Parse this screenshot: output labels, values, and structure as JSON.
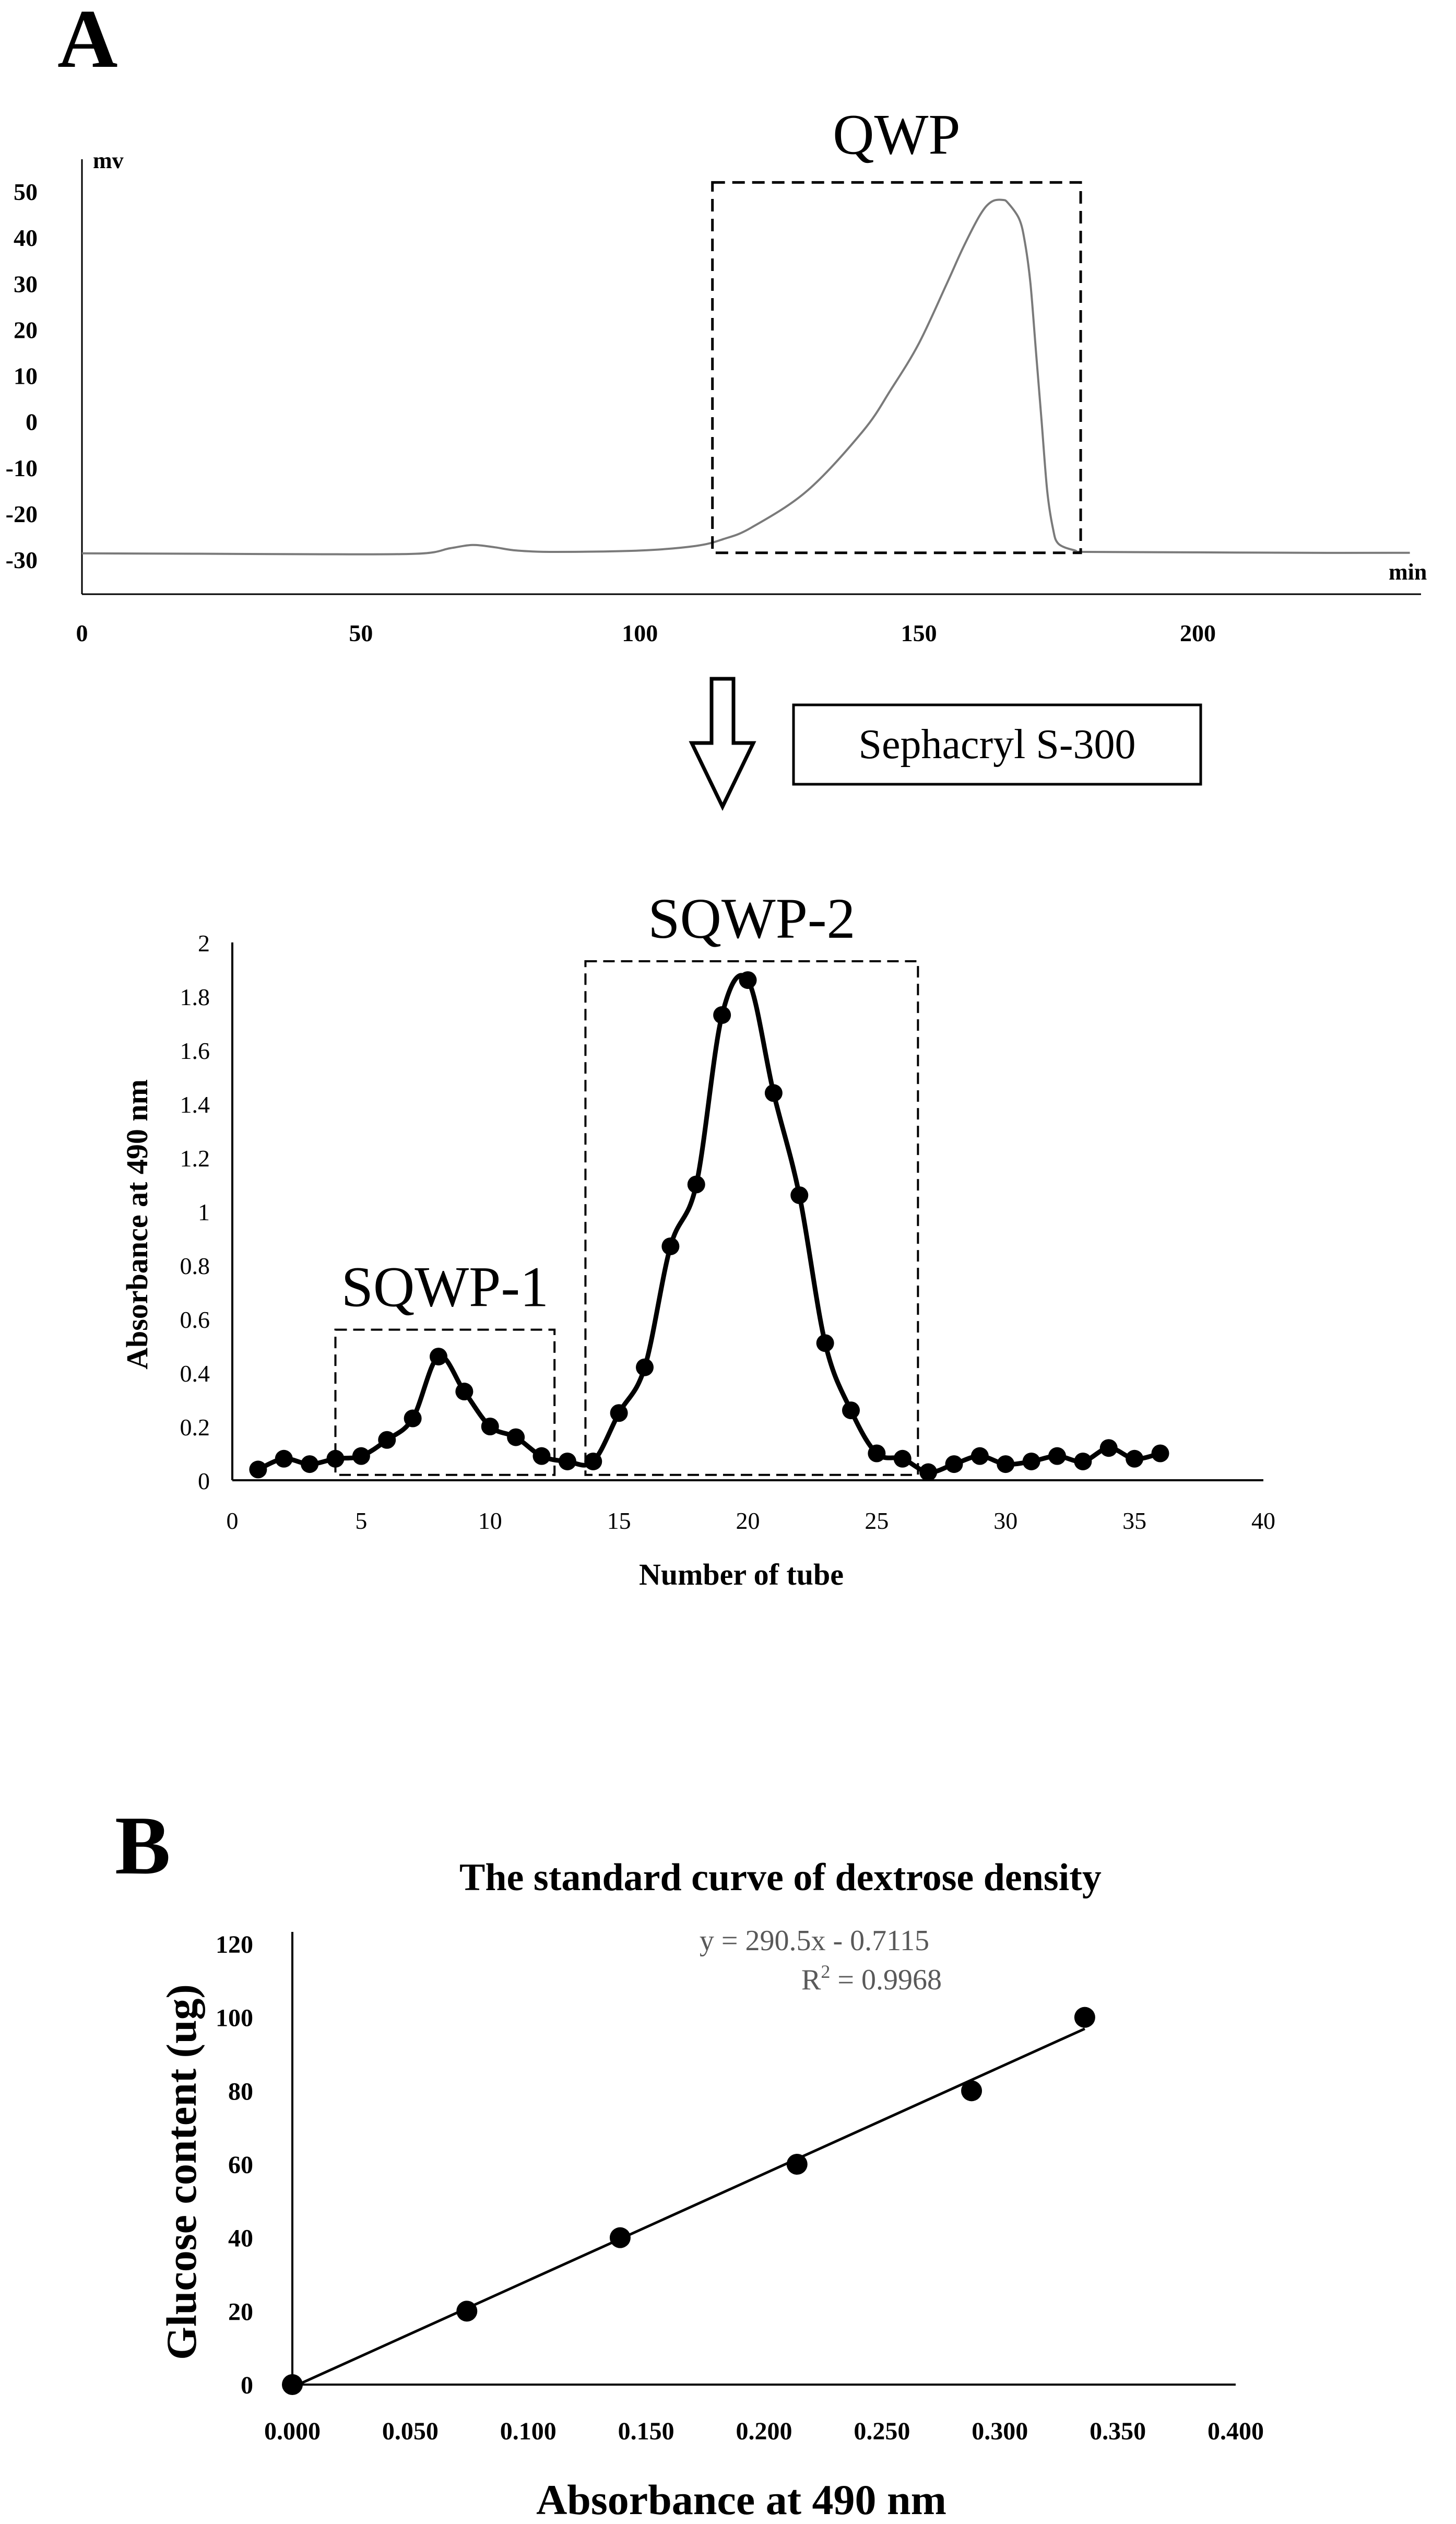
{
  "panels": {
    "A": {
      "letter": "A",
      "process_label": "Sephacryl S-300"
    },
    "B": {
      "letter": "B"
    }
  },
  "chart_data": [
    {
      "id": "hplc",
      "type": "line",
      "y_unit_label": "mv",
      "x_unit_label": "min",
      "xlim": [
        0,
        240
      ],
      "ylim": [
        -30,
        55
      ],
      "x_ticks": [
        0,
        50,
        100,
        150,
        200
      ],
      "y_ticks": [
        50,
        40,
        30,
        20,
        10,
        0,
        -10,
        -20,
        -30
      ],
      "series": [
        {
          "x": [
            0,
            20,
            40,
            60,
            66,
            70,
            74,
            78,
            85,
            100,
            110,
            115,
            120,
            130,
            140,
            145,
            150,
            155,
            158,
            161,
            163,
            165,
            166,
            168,
            169,
            170,
            171,
            172,
            173,
            174,
            175,
            178,
            180,
            200,
            220,
            238
          ],
          "y": [
            -28.6,
            -28.7,
            -28.8,
            -28.7,
            -27.5,
            -26.8,
            -27.3,
            -28.0,
            -28.3,
            -28.0,
            -27.0,
            -25.5,
            -23.0,
            -15.0,
            -2.0,
            7.0,
            17.0,
            30.0,
            38.0,
            45.0,
            47.8,
            48.2,
            47.5,
            44.0,
            39.0,
            30.0,
            15.0,
            0.0,
            -15.0,
            -23.0,
            -26.5,
            -28.0,
            -28.3,
            -28.4,
            -28.5,
            -28.5
          ]
        }
      ],
      "annotations": [
        {
          "label": "QWP",
          "x_range": [
            113,
            179
          ],
          "y_range": [
            -28.5,
            52
          ]
        }
      ]
    },
    {
      "id": "sephacryl",
      "type": "line",
      "xlabel": "Number of  tube",
      "ylabel": "Absorbance at 490 nm",
      "xlim": [
        0,
        40
      ],
      "ylim": [
        0,
        2
      ],
      "x_ticks": [
        0,
        5,
        10,
        15,
        20,
        25,
        30,
        35,
        40
      ],
      "y_ticks": [
        0,
        0.2,
        0.4,
        0.6,
        0.8,
        1,
        1.2,
        1.4,
        1.6,
        1.8,
        2
      ],
      "series": [
        {
          "x": [
            1,
            2,
            3,
            4,
            5,
            6,
            7,
            8,
            9,
            10,
            11,
            12,
            13,
            14,
            15,
            16,
            17,
            18,
            19,
            20,
            21,
            22,
            23,
            24,
            25,
            26,
            27,
            28,
            29,
            30,
            31,
            32,
            33,
            34,
            35,
            36
          ],
          "y": [
            0.04,
            0.08,
            0.06,
            0.08,
            0.09,
            0.15,
            0.23,
            0.46,
            0.33,
            0.2,
            0.16,
            0.09,
            0.07,
            0.07,
            0.25,
            0.42,
            0.87,
            1.1,
            1.73,
            1.86,
            1.44,
            1.06,
            0.51,
            0.26,
            0.1,
            0.08,
            0.03,
            0.06,
            0.09,
            0.06,
            0.07,
            0.09,
            0.07,
            0.12,
            0.08,
            0.1
          ]
        }
      ],
      "annotations": [
        {
          "label": "SQWP-1",
          "x_range": [
            4,
            12.5
          ],
          "y_range": [
            0.02,
            0.56
          ]
        },
        {
          "label": "SQWP-2",
          "x_range": [
            13.7,
            26.6
          ],
          "y_range": [
            0.02,
            1.93
          ]
        }
      ]
    },
    {
      "id": "standard",
      "type": "scatter",
      "title": "The standard curve of dextrose density",
      "xlabel": "Absorbance at 490 nm",
      "ylabel": "Glucose content  (ug)",
      "xlim": [
        0,
        0.4
      ],
      "ylim": [
        0,
        120
      ],
      "x_ticks": [
        "0.000",
        "0.050",
        "0.100",
        "0.150",
        "0.200",
        "0.250",
        "0.300",
        "0.350",
        "0.400"
      ],
      "y_ticks": [
        0,
        20,
        40,
        60,
        80,
        100,
        120
      ],
      "series": [
        {
          "x": [
            0.0,
            0.074,
            0.139,
            0.214,
            0.288,
            0.336
          ],
          "y": [
            0,
            20,
            40,
            60,
            80,
            100
          ]
        }
      ],
      "trendline": {
        "equation": "y = 290.5x - 0.7115",
        "r2_prefix": "R",
        "r2_sup": "2",
        "r2_value": " = 0.9968",
        "x_range": [
          0.0,
          0.336
        ]
      }
    }
  ]
}
